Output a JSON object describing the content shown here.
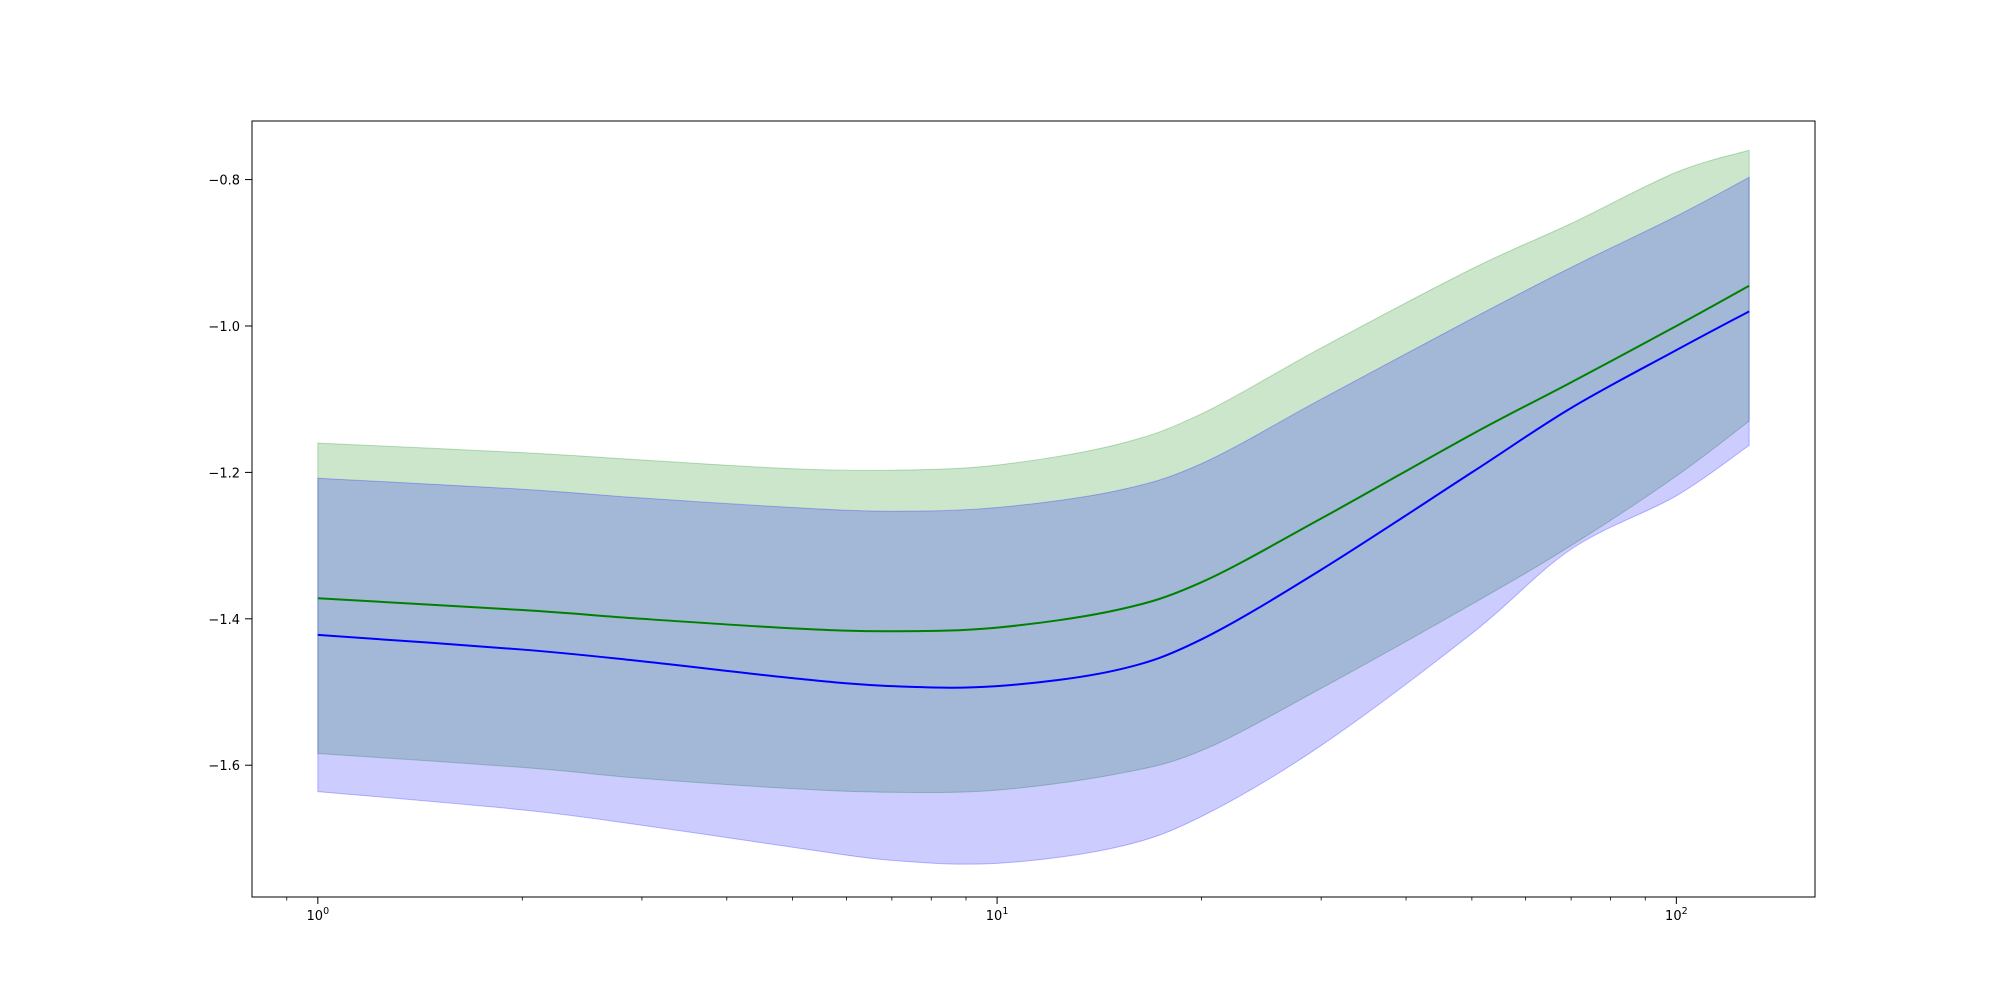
{
  "chart_data": {
    "type": "line",
    "title": "",
    "xlabel": "",
    "ylabel": "",
    "x_scale": "log",
    "xlim": [
      0.8,
      160
    ],
    "ylim": [
      -1.78,
      -0.72
    ],
    "grid": false,
    "x_ticks": [
      {
        "value": 1,
        "base": "10",
        "exp": "0"
      },
      {
        "value": 10,
        "base": "10",
        "exp": "1"
      },
      {
        "value": 100,
        "base": "10",
        "exp": "2"
      }
    ],
    "y_ticks": [
      {
        "value": -0.8,
        "label": "−0.8"
      },
      {
        "value": -1.0,
        "label": "−1.0"
      },
      {
        "value": -1.2,
        "label": "−1.2"
      },
      {
        "value": -1.4,
        "label": "−1.4"
      },
      {
        "value": -1.6,
        "label": "−1.6"
      }
    ],
    "x": [
      1,
      2,
      3,
      5,
      7,
      10,
      15,
      20,
      30,
      50,
      70,
      100,
      128
    ],
    "series": [
      {
        "color": "#008000",
        "band_color": "#008000",
        "band_opacity": 0.2,
        "values": [
          -1.372,
          -1.388,
          -1.4,
          -1.413,
          -1.417,
          -1.412,
          -1.388,
          -1.35,
          -1.263,
          -1.148,
          -1.077,
          -1.0,
          -0.945
        ],
        "band_upper": [
          -1.16,
          -1.173,
          -1.183,
          -1.195,
          -1.197,
          -1.19,
          -1.162,
          -1.12,
          -1.03,
          -0.922,
          -0.86,
          -0.79,
          -0.76
        ],
        "band_lower": [
          -1.584,
          -1.603,
          -1.618,
          -1.632,
          -1.637,
          -1.634,
          -1.612,
          -1.58,
          -1.495,
          -1.38,
          -1.3,
          -1.205,
          -1.13
        ]
      },
      {
        "color": "#0000ff",
        "band_color": "#0000ff",
        "band_opacity": 0.2,
        "values": [
          -1.422,
          -1.442,
          -1.458,
          -1.481,
          -1.492,
          -1.492,
          -1.47,
          -1.428,
          -1.333,
          -1.2,
          -1.112,
          -1.033,
          -0.98
        ],
        "band_upper": [
          -1.208,
          -1.223,
          -1.235,
          -1.248,
          -1.253,
          -1.248,
          -1.225,
          -1.188,
          -1.1,
          -0.99,
          -0.92,
          -0.85,
          -0.797
        ],
        "band_lower": [
          -1.636,
          -1.661,
          -1.682,
          -1.712,
          -1.73,
          -1.734,
          -1.712,
          -1.67,
          -1.573,
          -1.42,
          -1.305,
          -1.232,
          -1.163
        ]
      }
    ]
  }
}
